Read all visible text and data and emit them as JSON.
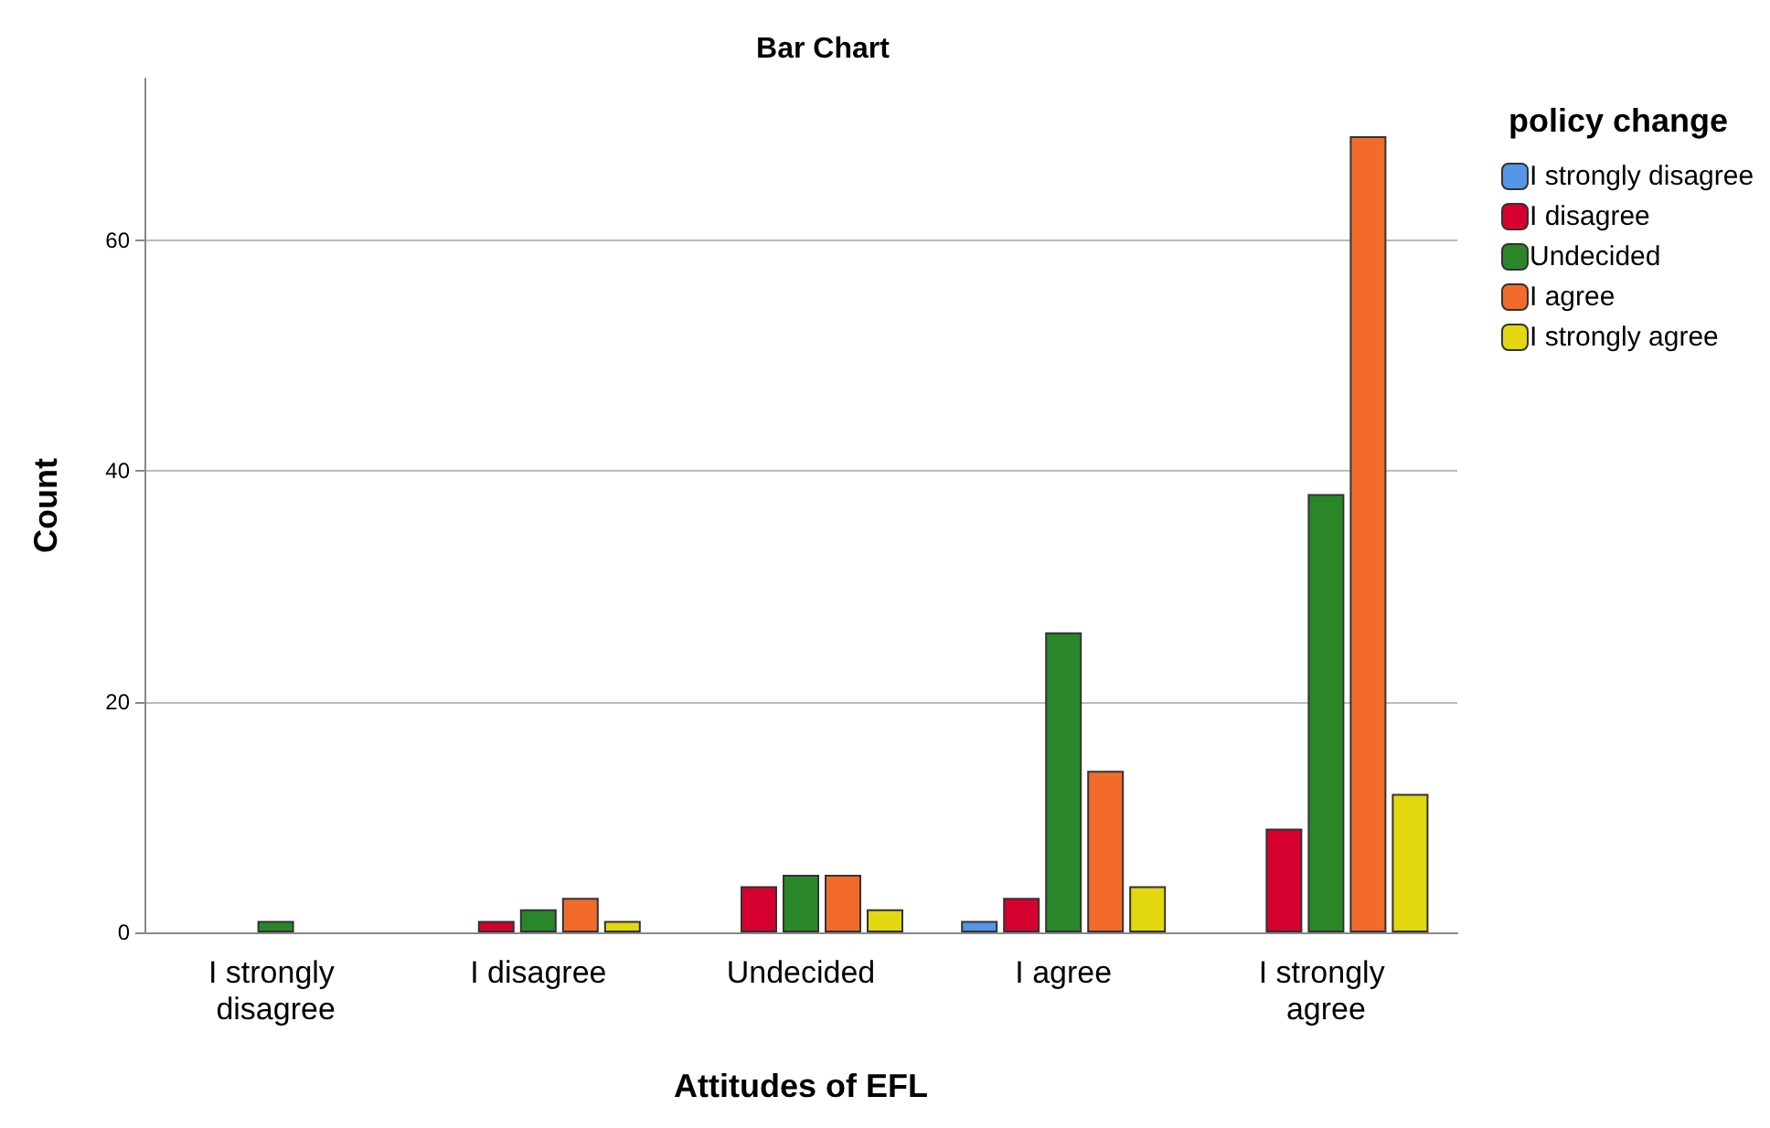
{
  "chart_data": {
    "type": "bar",
    "title": "Bar Chart",
    "xlabel": "Attitudes of EFL",
    "ylabel": "Count",
    "legend_title": "policy change",
    "categories": [
      "I strongly disagree",
      "I disagree",
      "Undecided",
      "I agree",
      "I strongly agree"
    ],
    "series": [
      {
        "name": "I strongly disagree",
        "color": "#5596e6",
        "values": [
          null,
          null,
          null,
          1,
          null
        ]
      },
      {
        "name": "I disagree",
        "color": "#d6002e",
        "values": [
          null,
          1,
          4,
          3,
          9
        ]
      },
      {
        "name": "Undecided",
        "color": "#2a8729",
        "values": [
          1,
          2,
          5,
          26,
          38
        ]
      },
      {
        "name": "I agree",
        "color": "#f26b2b",
        "values": [
          null,
          3,
          5,
          14,
          69
        ]
      },
      {
        "name": "I strongly agree",
        "color": "#e3d80f",
        "values": [
          null,
          1,
          2,
          4,
          12
        ]
      }
    ],
    "ylim": [
      0,
      74
    ],
    "yticks": [
      0,
      20,
      40,
      60
    ],
    "grid": "y",
    "legend": "top right"
  }
}
